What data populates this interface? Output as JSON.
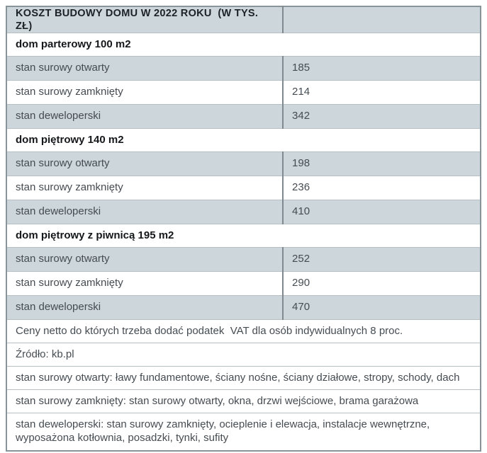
{
  "chart_data": {
    "type": "table",
    "title": "KOSZT BUDOWY DOMU W 2022 ROKU  (W TYS. ZŁ)",
    "unit": "tys. zł",
    "sections": [
      {
        "header": "dom parterowy 100 m2",
        "rows": [
          {
            "label": "stan surowy otwarty",
            "value": "185"
          },
          {
            "label": "stan surowy zamknięty",
            "value": "214"
          },
          {
            "label": "stan deweloperski",
            "value": "342"
          }
        ]
      },
      {
        "header": "dom piętrowy 140 m2",
        "rows": [
          {
            "label": "stan surowy otwarty",
            "value": "198"
          },
          {
            "label": "stan surowy zamknięty",
            "value": "236"
          },
          {
            "label": "stan deweloperski",
            "value": "410"
          }
        ]
      },
      {
        "header": "dom piętrowy z piwnicą 195 m2",
        "rows": [
          {
            "label": "stan surowy otwarty",
            "value": "252"
          },
          {
            "label": "stan surowy zamknięty",
            "value": "290"
          },
          {
            "label": "stan deweloperski",
            "value": "470"
          }
        ]
      }
    ],
    "notes": [
      "Ceny netto do których trzeba dodać podatek  VAT dla osób indywidualnych 8 proc.",
      "Źródło: kb.pl",
      "stan surowy otwarty: ławy fundamentowe, ściany nośne, ściany działowe, stropy, schody, dach",
      "stan surowy zamknięty: stan surowy otwarty, okna, drzwi wejściowe, brama garażowa",
      "stan deweloperski: stan surowy zamknięty, ocieplenie i elewacja, instalacje wewnętrzne, wyposażona kotłownia, posadzki, tynki, sufity"
    ],
    "colors": {
      "shaded_row_bg": "#ccd6db",
      "outer_border": "#89939a",
      "inner_border": "#b6bfc4",
      "column_divider": "#7f898f",
      "body_text": "#454c52",
      "bold_text": "#14181b"
    }
  }
}
